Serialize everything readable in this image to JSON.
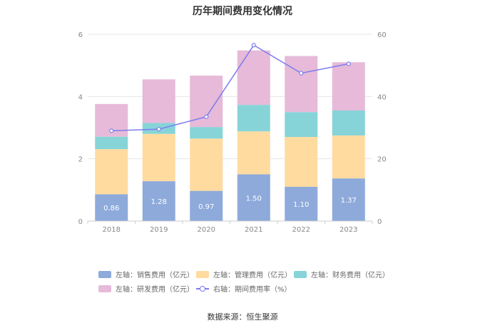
{
  "title": "历年期间费用变化情况",
  "source": "数据来源：恒生聚源",
  "chart_data": {
    "type": "bar",
    "stacked": true,
    "categories": [
      "2018",
      "2019",
      "2020",
      "2021",
      "2022",
      "2023"
    ],
    "left_axis": {
      "min": 0,
      "max": 6,
      "ticks": [
        0,
        2,
        4,
        6
      ]
    },
    "right_axis": {
      "min": 0,
      "max": 60,
      "ticks": [
        0,
        20,
        40,
        60
      ]
    },
    "series": [
      {
        "name": "左轴：销售费用（亿元）",
        "axis": "left",
        "kind": "bar",
        "color": "#8eaadb",
        "values": [
          0.86,
          1.28,
          0.97,
          1.5,
          1.1,
          1.37
        ],
        "labels": [
          "0.86",
          "1.28",
          "0.97",
          "1.50",
          "1.10",
          "1.37"
        ]
      },
      {
        "name": "左轴：管理费用（亿元）",
        "axis": "left",
        "kind": "bar",
        "color": "#ffdba0",
        "values": [
          1.45,
          1.52,
          1.68,
          1.38,
          1.6,
          1.38
        ]
      },
      {
        "name": "左轴：财务费用（亿元）",
        "axis": "left",
        "kind": "bar",
        "color": "#86d4d8",
        "values": [
          0.4,
          0.35,
          0.37,
          0.85,
          0.8,
          0.8
        ]
      },
      {
        "name": "左轴：研发费用（亿元）",
        "axis": "left",
        "kind": "bar",
        "color": "#e6bad8",
        "values": [
          1.05,
          1.4,
          1.65,
          1.75,
          1.8,
          1.55
        ]
      },
      {
        "name": "右轴：期间费用率（%）",
        "axis": "right",
        "kind": "line",
        "color": "#7b7cf0",
        "values": [
          29.0,
          29.5,
          33.5,
          56.5,
          47.5,
          50.5
        ]
      }
    ]
  }
}
